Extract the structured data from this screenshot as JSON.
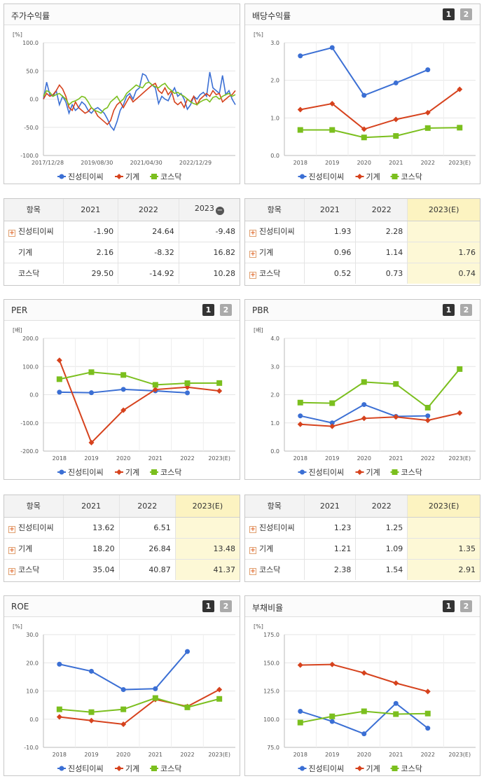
{
  "colors": {
    "company": "#3b6fd4",
    "industry": "#d6421d",
    "kosdaq": "#7bbf1e"
  },
  "legend": [
    "진성티이씨",
    "기계",
    "코스닥"
  ],
  "buttons": [
    "1",
    "2"
  ],
  "minus_icon": "−",
  "plus_icon": "+",
  "panels": {
    "stock": {
      "title": "주가수익률",
      "unit": "[%]"
    },
    "dividend": {
      "title": "배당수익률",
      "unit": "[%]"
    },
    "per": {
      "title": "PER",
      "unit": "[배]"
    },
    "pbr": {
      "title": "PBR",
      "unit": "[배]"
    },
    "roe": {
      "title": "ROE",
      "unit": "[%]"
    },
    "debt": {
      "title": "부채비율",
      "unit": "[%]"
    }
  },
  "tables": {
    "stock": {
      "header": [
        "항목",
        "2021",
        "2022",
        "2023"
      ],
      "est_col": false,
      "rows": [
        {
          "name": "진성티이씨",
          "plus": true,
          "vals": [
            "-1.90",
            "24.64",
            "-9.48"
          ]
        },
        {
          "name": "기계",
          "plus": false,
          "vals": [
            "2.16",
            "-8.32",
            "16.82"
          ]
        },
        {
          "name": "코스닥",
          "plus": false,
          "vals": [
            "29.50",
            "-14.92",
            "10.28"
          ]
        }
      ]
    },
    "dividend": {
      "header": [
        "항목",
        "2021",
        "2022",
        "2023(E)"
      ],
      "est_col": true,
      "rows": [
        {
          "name": "진성티이씨",
          "plus": true,
          "vals": [
            "1.93",
            "2.28",
            ""
          ]
        },
        {
          "name": "기계",
          "plus": true,
          "vals": [
            "0.96",
            "1.14",
            "1.76"
          ]
        },
        {
          "name": "코스닥",
          "plus": true,
          "vals": [
            "0.52",
            "0.73",
            "0.74"
          ]
        }
      ]
    },
    "per": {
      "header": [
        "항목",
        "2021",
        "2022",
        "2023(E)"
      ],
      "est_col": true,
      "rows": [
        {
          "name": "진성티이씨",
          "plus": true,
          "vals": [
            "13.62",
            "6.51",
            ""
          ]
        },
        {
          "name": "기계",
          "plus": true,
          "vals": [
            "18.20",
            "26.84",
            "13.48"
          ]
        },
        {
          "name": "코스닥",
          "plus": true,
          "vals": [
            "35.04",
            "40.87",
            "41.37"
          ]
        }
      ]
    },
    "pbr": {
      "header": [
        "항목",
        "2021",
        "2022",
        "2023(E)"
      ],
      "est_col": true,
      "rows": [
        {
          "name": "진성티이씨",
          "plus": true,
          "vals": [
            "1.23",
            "1.25",
            ""
          ]
        },
        {
          "name": "기계",
          "plus": true,
          "vals": [
            "1.21",
            "1.09",
            "1.35"
          ]
        },
        {
          "name": "코스닥",
          "plus": true,
          "vals": [
            "2.38",
            "1.54",
            "2.91"
          ]
        }
      ]
    }
  },
  "chart_data": [
    {
      "id": "stock",
      "type": "line",
      "ylabel": "[%]",
      "ylim": [
        -100,
        100
      ],
      "yticks": [
        "100.0",
        "50.0",
        "0.0",
        "-50.0",
        "-100.0"
      ],
      "xlabels": [
        "2017/12/28",
        "2019/08/30",
        "2021/04/30",
        "2022/12/29"
      ],
      "series": [
        {
          "name": "진성티이씨",
          "values": [
            0,
            30,
            8,
            5,
            15,
            -10,
            5,
            -5,
            -25,
            -10,
            -20,
            -15,
            -5,
            -10,
            -20,
            -25,
            -18,
            -15,
            -20,
            -25,
            -35,
            -48,
            -55,
            -40,
            -20,
            -10,
            5,
            10,
            0,
            15,
            20,
            45,
            42,
            30,
            25,
            20,
            -8,
            5,
            0,
            -3,
            10,
            20,
            5,
            10,
            0,
            -18,
            -10,
            5,
            0,
            8,
            12,
            5,
            48,
            20,
            15,
            10,
            42,
            8,
            15,
            0,
            -10
          ]
        },
        {
          "name": "기계",
          "values": [
            0,
            10,
            5,
            8,
            15,
            25,
            18,
            5,
            -15,
            -20,
            -5,
            -15,
            -20,
            -25,
            -22,
            -15,
            -20,
            -30,
            -35,
            -40,
            -45,
            -38,
            -20,
            -10,
            -5,
            -15,
            -5,
            5,
            -5,
            0,
            5,
            10,
            15,
            20,
            25,
            28,
            15,
            10,
            20,
            8,
            15,
            -5,
            -10,
            -5,
            -15,
            0,
            -5,
            5,
            -10,
            0,
            5,
            10,
            5,
            15,
            8,
            10,
            -5,
            0,
            5,
            8,
            15
          ]
        },
        {
          "name": "코스닥",
          "values": [
            5,
            15,
            12,
            5,
            8,
            10,
            5,
            0,
            -10,
            -5,
            -3,
            0,
            5,
            3,
            -5,
            -15,
            -20,
            -22,
            -25,
            -18,
            -15,
            -5,
            0,
            5,
            -5,
            0,
            10,
            15,
            20,
            25,
            22,
            20,
            28,
            30,
            25,
            22,
            20,
            25,
            28,
            20,
            15,
            10,
            12,
            8,
            5,
            0,
            -5,
            -8,
            -10,
            -5,
            -2,
            0,
            -5,
            3,
            5,
            0,
            5,
            8,
            10,
            5,
            8
          ]
        }
      ]
    },
    {
      "id": "dividend",
      "type": "line",
      "ylabel": "[%]",
      "ylim": [
        0,
        3
      ],
      "yticks": [
        "3.0",
        "2.0",
        "1.0",
        "0.0"
      ],
      "categories": [
        "2018",
        "2019",
        "2020",
        "2021",
        "2022",
        "2023(E)"
      ],
      "series": [
        {
          "name": "진성티이씨",
          "values": [
            2.65,
            2.87,
            1.6,
            1.93,
            2.28,
            null
          ]
        },
        {
          "name": "기계",
          "values": [
            1.22,
            1.38,
            0.7,
            0.96,
            1.14,
            1.76
          ]
        },
        {
          "name": "코스닥",
          "values": [
            0.68,
            0.68,
            0.48,
            0.52,
            0.73,
            0.74
          ]
        }
      ]
    },
    {
      "id": "per",
      "type": "line",
      "ylabel": "[배]",
      "ylim": [
        -200,
        200
      ],
      "yticks": [
        "200.0",
        "100.0",
        "0.0",
        "-100.0",
        "-200.0"
      ],
      "categories": [
        "2018",
        "2019",
        "2020",
        "2021",
        "2022",
        "2023(E)"
      ],
      "series": [
        {
          "name": "진성티이씨",
          "values": [
            9,
            7,
            19,
            13.62,
            6.51,
            null
          ]
        },
        {
          "name": "기계",
          "values": [
            122,
            -170,
            -55,
            18.2,
            26.84,
            13.48
          ]
        },
        {
          "name": "코스닥",
          "values": [
            55,
            80,
            70,
            35.04,
            40.87,
            41.37
          ]
        }
      ]
    },
    {
      "id": "pbr",
      "type": "line",
      "ylabel": "[배]",
      "ylim": [
        0,
        4
      ],
      "yticks": [
        "4.0",
        "3.0",
        "2.0",
        "1.0",
        "0.0"
      ],
      "categories": [
        "2018",
        "2019",
        "2020",
        "2021",
        "2022",
        "2023(E)"
      ],
      "series": [
        {
          "name": "진성티이씨",
          "values": [
            1.25,
            1.0,
            1.65,
            1.23,
            1.25,
            null
          ]
        },
        {
          "name": "기계",
          "values": [
            0.95,
            0.88,
            1.16,
            1.21,
            1.09,
            1.35
          ]
        },
        {
          "name": "코스닥",
          "values": [
            1.72,
            1.7,
            2.45,
            2.38,
            1.54,
            2.91
          ]
        }
      ]
    },
    {
      "id": "roe",
      "type": "line",
      "ylabel": "[%]",
      "ylim": [
        -10,
        30
      ],
      "yticks": [
        "30.0",
        "20.0",
        "10.0",
        "0.0",
        "-10.0"
      ],
      "categories": [
        "2018",
        "2019",
        "2020",
        "2021",
        "2022",
        "2023(E)"
      ],
      "series": [
        {
          "name": "진성티이씨",
          "values": [
            19.5,
            17,
            10.5,
            10.8,
            24,
            null
          ]
        },
        {
          "name": "기계",
          "values": [
            0.8,
            -0.5,
            -1.8,
            7,
            4.5,
            10.5
          ]
        },
        {
          "name": "코스닥",
          "values": [
            3.5,
            2.5,
            3.5,
            7.5,
            4.2,
            7.2
          ]
        }
      ]
    },
    {
      "id": "debt",
      "type": "line",
      "ylabel": "[%]",
      "ylim": [
        75,
        175
      ],
      "yticks": [
        "175.0",
        "150.0",
        "125.0",
        "100.0",
        "75.0"
      ],
      "categories": [
        "2018",
        "2019",
        "2020",
        "2021",
        "2022",
        "2023(E)"
      ],
      "series": [
        {
          "name": "진성티이씨",
          "values": [
            107,
            98,
            87,
            114,
            92,
            null
          ]
        },
        {
          "name": "기계",
          "values": [
            148,
            148.5,
            141,
            132,
            124.5,
            null
          ]
        },
        {
          "name": "코스닥",
          "values": [
            97,
            102.5,
            107,
            104.5,
            105,
            null
          ]
        }
      ]
    }
  ]
}
